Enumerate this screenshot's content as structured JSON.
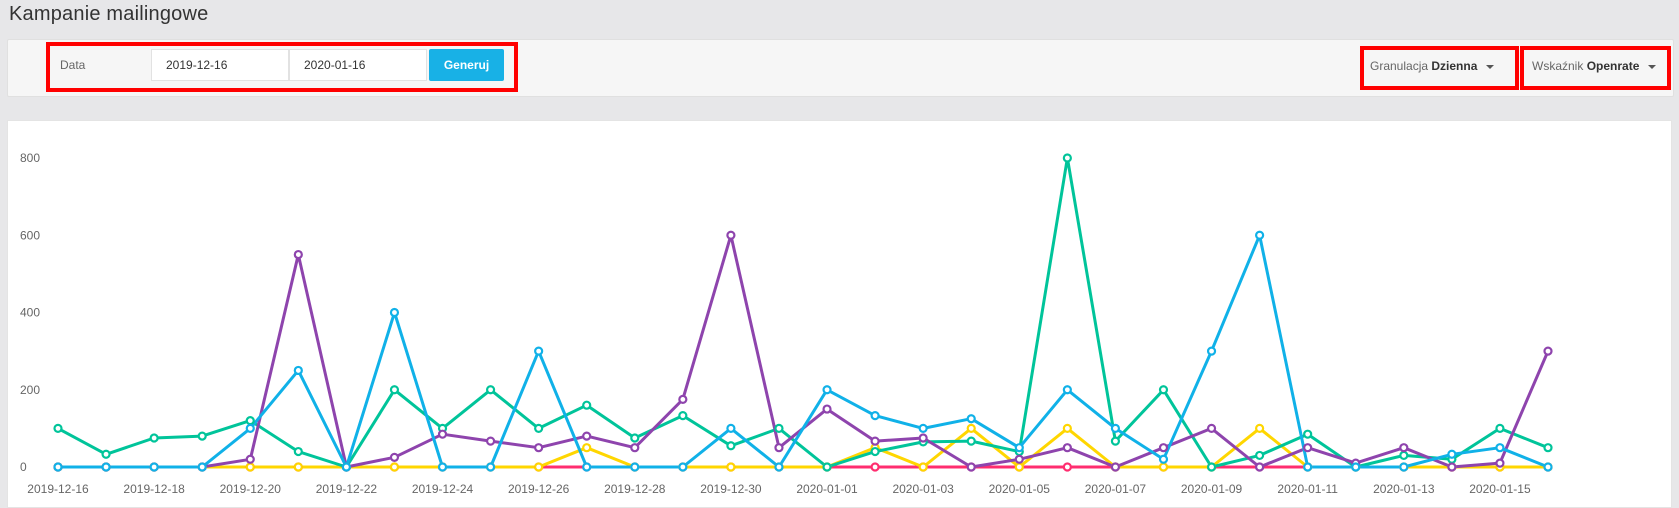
{
  "page": {
    "title": "Kampanie mailingowe"
  },
  "toolbar": {
    "date_label": "Data",
    "date_from": "2019-12-16",
    "date_to": "2020-01-16",
    "generate_label": "Generuj",
    "granulation": {
      "label": "Granulacja",
      "value": "Dzienna"
    },
    "indicator": {
      "label": "Wskaźnik",
      "value": "Openrate"
    }
  },
  "colors": {
    "accent": "#18b1e6",
    "highlight": "#ff0000"
  },
  "chart_data": {
    "type": "line",
    "x": [
      "2019-12-16",
      "2019-12-17",
      "2019-12-18",
      "2019-12-19",
      "2019-12-20",
      "2019-12-21",
      "2019-12-22",
      "2019-12-23",
      "2019-12-24",
      "2019-12-25",
      "2019-12-26",
      "2019-12-27",
      "2019-12-28",
      "2019-12-29",
      "2019-12-30",
      "2019-12-31",
      "2020-01-01",
      "2020-01-02",
      "2020-01-03",
      "2020-01-04",
      "2020-01-05",
      "2020-01-06",
      "2020-01-07",
      "2020-01-08",
      "2020-01-09",
      "2020-01-10",
      "2020-01-11",
      "2020-01-12",
      "2020-01-13",
      "2020-01-14",
      "2020-01-15",
      "2020-01-16"
    ],
    "x_tick_labels": [
      "2019-12-16",
      "2019-12-18",
      "2019-12-20",
      "2019-12-22",
      "2019-12-24",
      "2019-12-26",
      "2019-12-28",
      "2019-12-30",
      "2020-01-01",
      "2020-01-03",
      "2020-01-05",
      "2020-01-07",
      "2020-01-09",
      "2020-01-11",
      "2020-01-13",
      "2020-01-15"
    ],
    "y_ticks": [
      0,
      200,
      400,
      600,
      800
    ],
    "ylim": [
      0,
      800
    ],
    "grid": false,
    "series": [
      {
        "color": "#00c49a",
        "values": [
          100,
          33,
          75,
          80,
          120,
          40,
          0,
          200,
          100,
          200,
          100,
          160,
          75,
          133,
          55,
          100,
          0,
          40,
          65,
          67,
          40,
          800,
          67,
          200,
          0,
          30,
          85,
          0,
          30,
          20,
          100,
          50
        ]
      },
      {
        "color": "#10b1e8",
        "values": [
          0,
          0,
          0,
          0,
          100,
          250,
          0,
          400,
          0,
          0,
          300,
          0,
          0,
          0,
          100,
          0,
          200,
          133,
          100,
          125,
          50,
          200,
          100,
          20,
          300,
          600,
          0,
          0,
          0,
          33,
          50,
          0
        ]
      },
      {
        "color": "#8e44ad",
        "values": [
          0,
          0,
          0,
          0,
          20,
          550,
          0,
          25,
          85,
          67,
          50,
          80,
          50,
          175,
          600,
          50,
          150,
          67,
          75,
          0,
          20,
          50,
          0,
          50,
          100,
          0,
          50,
          10,
          50,
          0,
          10,
          300
        ]
      },
      {
        "color": "#ffd600",
        "values": [
          0,
          0,
          0,
          0,
          0,
          0,
          0,
          0,
          0,
          0,
          0,
          50,
          0,
          0,
          0,
          0,
          0,
          50,
          0,
          100,
          0,
          100,
          0,
          0,
          0,
          100,
          0,
          0,
          0,
          0,
          0,
          0
        ]
      },
      {
        "color": "#ff2d6f",
        "values": [
          0,
          0,
          0,
          0,
          0,
          0,
          0,
          0,
          0,
          0,
          0,
          0,
          0,
          0,
          0,
          0,
          0,
          0,
          0,
          0,
          0,
          0,
          0,
          0,
          0,
          0,
          0,
          0,
          0,
          0,
          0,
          0
        ]
      }
    ]
  }
}
